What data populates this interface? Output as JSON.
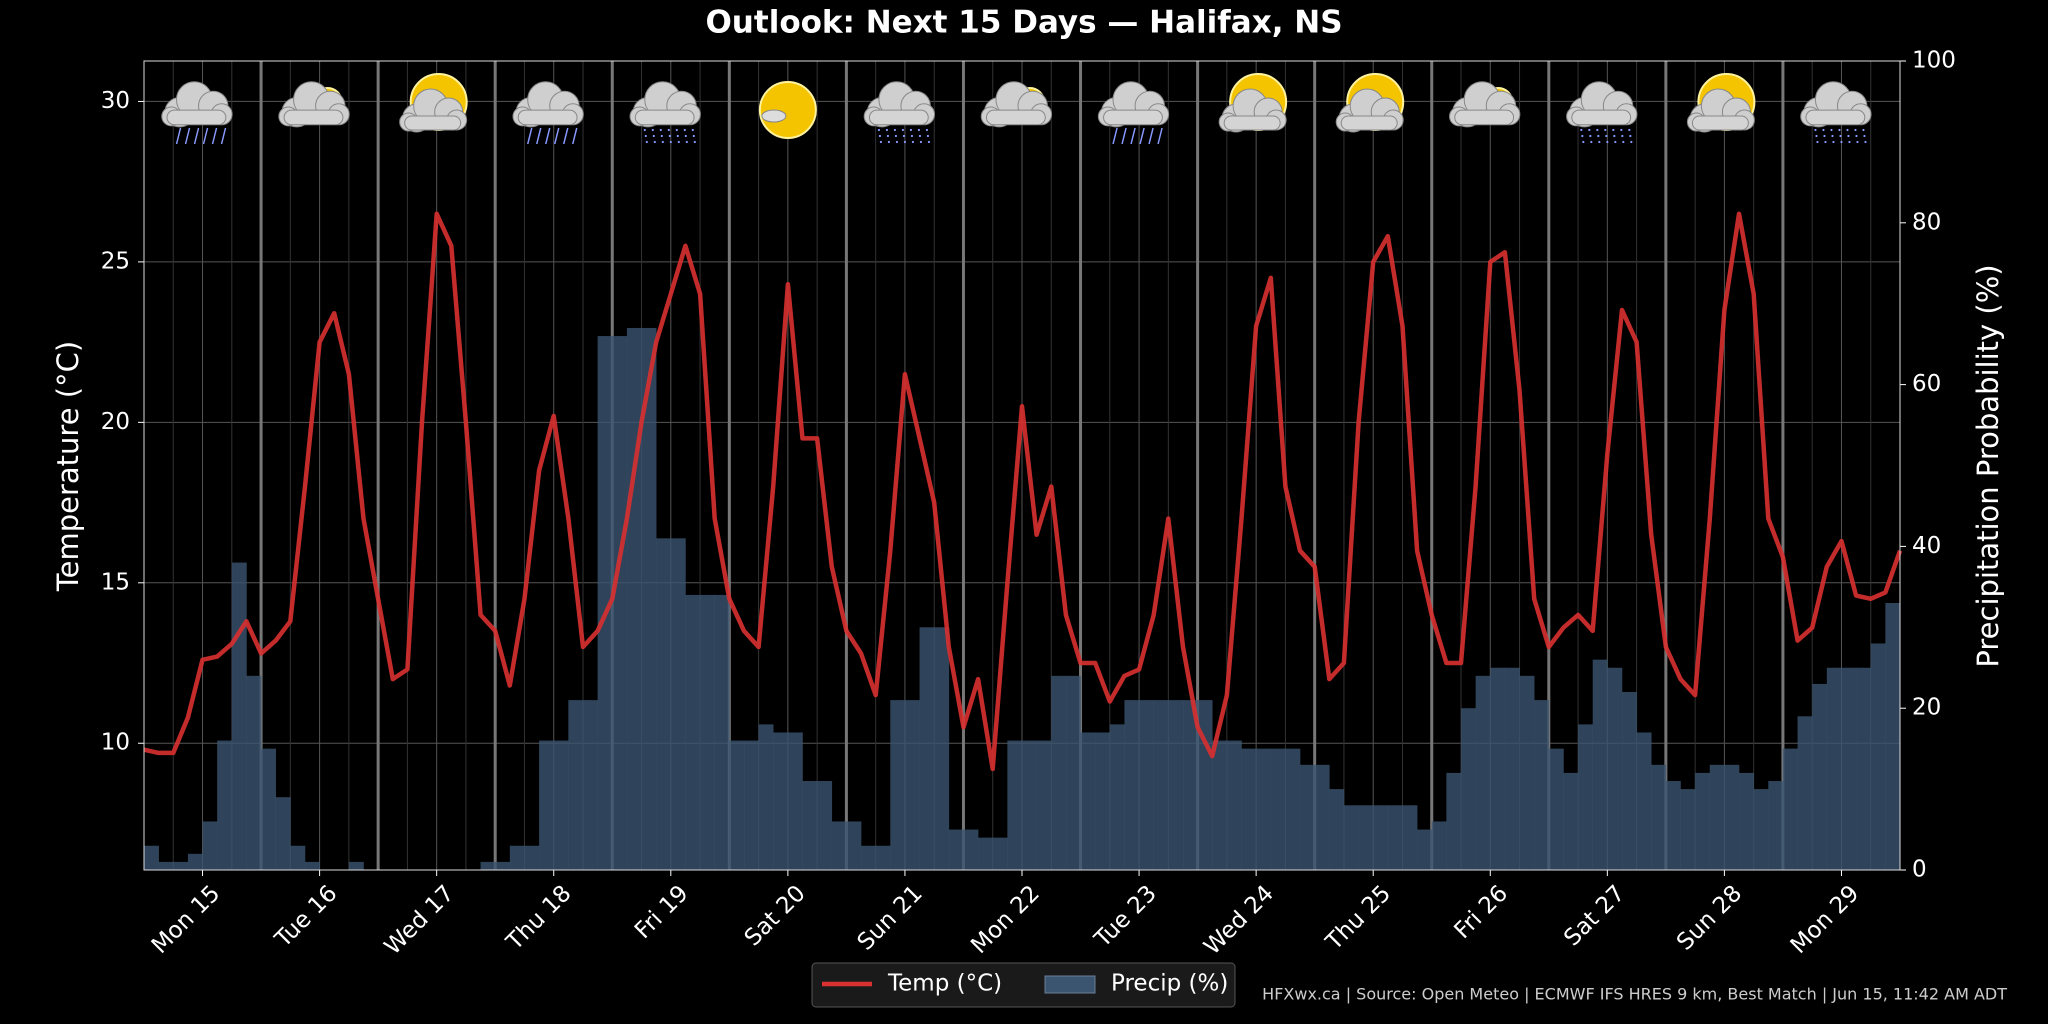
{
  "chart_data": {
    "type": "combo",
    "title": "Outlook: Next 15 Days — Halifax, NS",
    "y_label": "Temperature (°C)",
    "y2_label": "Precipitation Probability (%)",
    "footer": "HFXwx.ca | Source: Open Meteo | ECMWF IFS HRES 9 km, Best Match | Jun 15, 11:42 AM ADT",
    "xlim": [
      0,
      360
    ],
    "xticks": [
      {
        "value": 12,
        "label": "Mon 15"
      },
      {
        "value": 36,
        "label": "Tue 16"
      },
      {
        "value": 60,
        "label": "Wed 17"
      },
      {
        "value": 84,
        "label": "Thu 18"
      },
      {
        "value": 108,
        "label": "Fri 19"
      },
      {
        "value": 132,
        "label": "Sat 20"
      },
      {
        "value": 156,
        "label": "Sun 21"
      },
      {
        "value": 180,
        "label": "Mon 22"
      },
      {
        "value": 204,
        "label": "Tue 23"
      },
      {
        "value": 228,
        "label": "Wed 24"
      },
      {
        "value": 252,
        "label": "Thu 25"
      },
      {
        "value": 276,
        "label": "Fri 26"
      },
      {
        "value": 300,
        "label": "Sat 27"
      },
      {
        "value": 324,
        "label": "Sun 28"
      },
      {
        "value": 348,
        "label": "Mon 29"
      }
    ],
    "ylim": [
      6.05,
      31.26
    ],
    "yticks": [
      10,
      15,
      20,
      25,
      30
    ],
    "y2lim": [
      0,
      100
    ],
    "y2ticks": [
      0,
      20,
      40,
      60,
      80,
      100
    ],
    "grid": true,
    "legend": "bottom",
    "series": [
      {
        "name": "Temp (°C)",
        "type": "line",
        "color": "#d93030",
        "x": [
          0,
          3,
          6,
          9,
          12,
          15,
          18,
          21,
          24,
          27,
          30,
          33,
          36,
          39,
          42,
          45,
          48,
          51,
          54,
          57,
          60,
          63,
          66,
          69,
          72,
          75,
          78,
          81,
          84,
          87,
          90,
          93,
          96,
          99,
          102,
          105,
          108,
          111,
          114,
          117,
          120,
          123,
          126,
          129,
          132,
          135,
          138,
          141,
          144,
          147,
          150,
          153,
          156,
          159,
          162,
          165,
          168,
          171,
          174,
          177,
          180,
          183,
          186,
          189,
          192,
          195,
          198,
          201,
          204,
          207,
          210,
          213,
          216,
          219,
          222,
          225,
          228,
          231,
          234,
          237,
          240,
          243,
          246,
          249,
          252,
          255,
          258,
          261,
          264,
          267,
          270,
          273,
          276,
          279,
          282,
          285,
          288,
          291,
          294,
          297,
          300,
          303,
          306,
          309,
          312,
          315,
          318,
          321,
          324,
          327,
          330,
          333,
          336,
          339,
          342,
          345,
          348,
          351,
          354,
          357,
          360
        ],
        "values": [
          9.8,
          9.7,
          9.7,
          10.8,
          12.6,
          12.7,
          13.1,
          13.8,
          12.8,
          13.2,
          13.8,
          18,
          22.5,
          23.4,
          21.5,
          17,
          14.5,
          12,
          12.3,
          20,
          26.5,
          25.5,
          20,
          14,
          13.5,
          11.8,
          14.5,
          18.5,
          20.2,
          17,
          13,
          13.5,
          14.5,
          17,
          20,
          22.5,
          24,
          25.5,
          24,
          17,
          14.5,
          13.5,
          13,
          18,
          24.3,
          19.5,
          19.5,
          15.5,
          13.5,
          12.8,
          11.5,
          16,
          21.5,
          19.5,
          17.5,
          13,
          10.5,
          12,
          9.2,
          15,
          20.5,
          16.5,
          18,
          14,
          12.5,
          12.5,
          11.3,
          12.1,
          12.3,
          14,
          17,
          13,
          10.5,
          9.6,
          11.5,
          17,
          23,
          24.5,
          18,
          16,
          15.5,
          12,
          12.5,
          20,
          25,
          25.8,
          23,
          16,
          14,
          12.5,
          12.5,
          18,
          25,
          25.3,
          21,
          14.5,
          13,
          13.6,
          14,
          13.5,
          19,
          23.5,
          22.5,
          16.5,
          13,
          12,
          11.5,
          17,
          23.5,
          26.5,
          24,
          17,
          15.8,
          13.2,
          13.6,
          15.5,
          16.3,
          14.6,
          14.5,
          14.7,
          16
        ]
      },
      {
        "name": "Precip (%)",
        "type": "histogram",
        "axis": "y2",
        "color": "#3b5570",
        "bins": [
          0,
          3,
          6,
          9,
          12,
          15,
          18,
          21,
          24,
          27,
          30,
          33,
          36,
          39,
          42,
          45,
          48,
          51,
          54,
          57,
          60,
          63,
          66,
          69,
          72,
          75,
          78,
          81,
          84,
          87,
          90,
          93,
          96,
          99,
          102,
          105,
          108,
          111,
          114,
          117,
          120,
          123,
          126,
          129,
          132,
          135,
          138,
          141,
          144,
          147,
          150,
          153,
          156,
          159,
          162,
          165,
          168,
          171,
          174,
          177,
          180,
          183,
          186,
          189,
          192,
          195,
          198,
          201,
          204,
          207,
          210,
          213,
          216,
          219,
          222,
          225,
          228,
          231,
          234,
          237,
          240,
          243,
          246,
          249,
          252,
          255,
          258,
          261,
          264,
          267,
          270,
          273,
          276,
          279,
          282,
          285,
          288,
          291,
          294,
          297,
          300,
          303,
          306,
          309,
          312,
          315,
          318,
          321,
          324,
          327,
          330,
          333,
          336,
          339,
          342,
          345,
          348,
          351,
          354,
          357,
          360
        ],
        "values": [
          3,
          1,
          1,
          2,
          6,
          16,
          38,
          24,
          15,
          9,
          3,
          1,
          0,
          0,
          1,
          0,
          0,
          0,
          0,
          0,
          0,
          0,
          0,
          1,
          1,
          3,
          3,
          16,
          16,
          21,
          21,
          66,
          66,
          67,
          67,
          41,
          41,
          34,
          34,
          34,
          16,
          16,
          18,
          17,
          17,
          11,
          11,
          6,
          6,
          3,
          3,
          21,
          21,
          30,
          30,
          5,
          5,
          4,
          4,
          16,
          16,
          16,
          24,
          24,
          17,
          17,
          18,
          21,
          21,
          21,
          21,
          21,
          21,
          16,
          16,
          15,
          15,
          15,
          15,
          13,
          13,
          10,
          8,
          8,
          8,
          8,
          8,
          5,
          6,
          12,
          20,
          24,
          25,
          25,
          24,
          21,
          15,
          12,
          18,
          26,
          25,
          22,
          17,
          13,
          11,
          10,
          12,
          13,
          13,
          12,
          10,
          11,
          15,
          19,
          23,
          25,
          25,
          25,
          28,
          33
        ]
      }
    ]
  }
}
